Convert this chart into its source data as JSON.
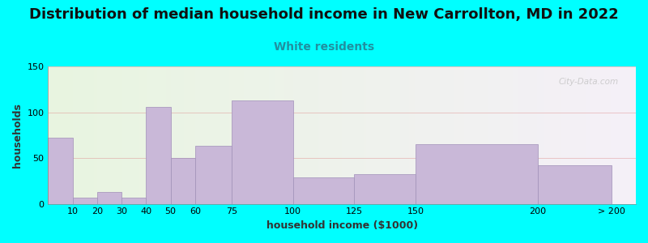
{
  "title": "Distribution of median household income in New Carrollton, MD in 2022",
  "subtitle": "White residents",
  "xlabel": "household income ($1000)",
  "ylabel": "households",
  "background_color": "#00FFFF",
  "bar_color": "#c9b8d8",
  "bar_edge_color": "#a090b8",
  "subtitle_color": "#2090a0",
  "watermark": "City-Data.com",
  "bin_edges": [
    0,
    10,
    20,
    30,
    40,
    50,
    60,
    75,
    100,
    125,
    150,
    200,
    230
  ],
  "tick_positions": [
    10,
    20,
    30,
    40,
    50,
    60,
    75,
    100,
    125,
    150,
    200,
    230
  ],
  "tick_labels": [
    "10",
    "20",
    "30",
    "40",
    "50",
    "60",
    "75",
    "100",
    "125",
    "150",
    "200",
    "> 200"
  ],
  "values": [
    72,
    7,
    13,
    7,
    106,
    50,
    63,
    113,
    29,
    32,
    65,
    42
  ],
  "ylim": [
    0,
    150
  ],
  "yticks": [
    0,
    50,
    100,
    150
  ],
  "xlim": [
    0,
    240
  ],
  "title_fontsize": 13,
  "subtitle_fontsize": 10,
  "axis_label_fontsize": 9,
  "tick_fontsize": 8
}
